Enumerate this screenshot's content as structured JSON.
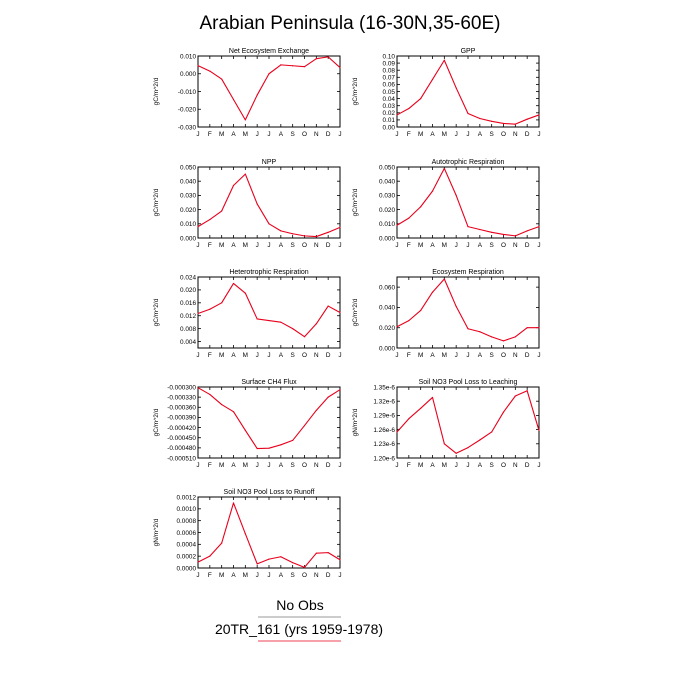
{
  "title": "Arabian Peninsula (16-30N,35-60E)",
  "colors": {
    "series": "#e8001c",
    "axis": "#000000"
  },
  "legend": [
    {
      "label": "No Obs",
      "color": "#777777"
    },
    {
      "label": "20TR_161 (yrs 1959-1978)",
      "color": "#e8001c"
    }
  ],
  "months": [
    "J",
    "F",
    "M",
    "A",
    "M",
    "J",
    "J",
    "A",
    "S",
    "O",
    "N",
    "D",
    "J"
  ],
  "chart_data": [
    {
      "type": "line",
      "title": "Net Ecosystem Exchange",
      "ylabel": "gC/m^2/d",
      "ylim": [
        -0.03,
        0.01
      ],
      "yticks": [
        0.01,
        0.0,
        -0.01,
        -0.02,
        -0.03
      ],
      "ytick_labels": [
        "0.010",
        "0.000",
        "-0.010",
        "-0.020",
        "-0.030"
      ],
      "values": [
        0.0046,
        0.0015,
        -0.003,
        -0.0145,
        -0.026,
        -0.012,
        0.0,
        0.005,
        0.0045,
        0.004,
        0.0085,
        0.0095,
        0.0035
      ]
    },
    {
      "type": "line",
      "title": "GPP",
      "ylabel": "gC/m^2/d",
      "ylim": [
        0.0,
        0.1
      ],
      "yticks": [
        0.1,
        0.09,
        0.08,
        0.07,
        0.06,
        0.05,
        0.04,
        0.03,
        0.02,
        0.01,
        0.0
      ],
      "ytick_labels": [
        "0.10",
        "0.09",
        "0.08",
        "0.07",
        "0.06",
        "0.05",
        "0.04",
        "0.03",
        "0.02",
        "0.01",
        "0.00"
      ],
      "values": [
        0.017,
        0.026,
        0.04,
        0.067,
        0.094,
        0.055,
        0.019,
        0.012,
        0.008,
        0.005,
        0.004,
        0.011,
        0.017
      ]
    },
    {
      "type": "line",
      "title": "NPP",
      "ylabel": "gC/m^2/d",
      "ylim": [
        0.0,
        0.05
      ],
      "yticks": [
        0.05,
        0.04,
        0.03,
        0.02,
        0.01,
        0.0
      ],
      "ytick_labels": [
        "0.050",
        "0.040",
        "0.030",
        "0.020",
        "0.010",
        "0.000"
      ],
      "values": [
        0.008,
        0.013,
        0.019,
        0.037,
        0.045,
        0.024,
        0.01,
        0.005,
        0.003,
        0.0015,
        0.001,
        0.004,
        0.0075
      ]
    },
    {
      "type": "line",
      "title": "Autotrophic Respiration",
      "ylabel": "gC/m^2/d",
      "ylim": [
        0.0,
        0.05
      ],
      "yticks": [
        0.05,
        0.04,
        0.03,
        0.02,
        0.01,
        0.0
      ],
      "ytick_labels": [
        "0.050",
        "0.040",
        "0.030",
        "0.020",
        "0.010",
        "0.000"
      ],
      "values": [
        0.009,
        0.014,
        0.022,
        0.033,
        0.049,
        0.03,
        0.008,
        0.006,
        0.004,
        0.0025,
        0.0015,
        0.005,
        0.008
      ]
    },
    {
      "type": "line",
      "title": "Heterotrophic Respiration",
      "ylabel": "gC/m^2/d",
      "ylim": [
        0.002,
        0.024
      ],
      "yticks": [
        0.024,
        0.02,
        0.016,
        0.012,
        0.008,
        0.004
      ],
      "ytick_labels": [
        "0.024",
        "0.020",
        "0.016",
        "0.012",
        "0.008",
        "0.004"
      ],
      "values": [
        0.0127,
        0.014,
        0.016,
        0.022,
        0.019,
        0.011,
        0.0105,
        0.01,
        0.008,
        0.0055,
        0.0095,
        0.015,
        0.013
      ]
    },
    {
      "type": "line",
      "title": "Ecosystem Respiration",
      "ylabel": "gC/m^2/d",
      "ylim": [
        0.0,
        0.07
      ],
      "yticks": [
        0.06,
        0.04,
        0.02,
        0.0
      ],
      "ytick_labels": [
        "0.060",
        "0.040",
        "0.020",
        "0.000"
      ],
      "values": [
        0.021,
        0.027,
        0.037,
        0.055,
        0.068,
        0.041,
        0.019,
        0.016,
        0.011,
        0.007,
        0.011,
        0.02,
        0.02
      ]
    },
    {
      "type": "line",
      "title": "Surface CH4 Flux",
      "ylabel": "gC/m^2/d",
      "ylim": [
        -0.00051,
        -0.0003
      ],
      "yticks": [
        -0.0003,
        -0.00033,
        -0.00036,
        -0.00039,
        -0.00042,
        -0.00045,
        -0.00048,
        -0.00051
      ],
      "ytick_labels": [
        "-0.000300",
        "-0.000330",
        "-0.000360",
        "-0.000390",
        "-0.000420",
        "-0.000450",
        "-0.000480",
        "-0.000510"
      ],
      "values": [
        -0.000302,
        -0.000322,
        -0.000352,
        -0.000373,
        -0.000428,
        -0.000482,
        -0.000481,
        -0.000471,
        -0.000458,
        -0.000414,
        -0.000369,
        -0.00033,
        -0.000308
      ]
    },
    {
      "type": "line",
      "title": "Soil NO3 Pool Loss to Leaching",
      "ylabel": "gN/m^2/d",
      "ylim": [
        1.2e-06,
        1.35e-06
      ],
      "yticks": [
        1.35e-06,
        1.32e-06,
        1.29e-06,
        1.26e-06,
        1.23e-06,
        1.2e-06
      ],
      "ytick_labels": [
        "1.35e-6",
        "1.32e-6",
        "1.29e-6",
        "1.26e-6",
        "1.23e-6",
        "1.20e-6"
      ],
      "values": [
        1.255e-06,
        1.283e-06,
        1.305e-06,
        1.328e-06,
        1.23e-06,
        1.21e-06,
        1.222e-06,
        1.238e-06,
        1.255e-06,
        1.297e-06,
        1.331e-06,
        1.342e-06,
        1.258e-06
      ]
    },
    {
      "type": "line",
      "title": "Soil NO3 Pool Loss to Runoff",
      "ylabel": "gN/m^2/d",
      "ylim": [
        0.0,
        0.0012
      ],
      "yticks": [
        0.0012,
        0.001,
        0.0008,
        0.0006,
        0.0004,
        0.0002,
        0.0
      ],
      "ytick_labels": [
        "0.0012",
        "0.0010",
        "0.0008",
        "0.0006",
        "0.0004",
        "0.0002",
        "0.0000"
      ],
      "values": [
        0.0001,
        0.0002,
        0.00042,
        0.0011,
        0.00058,
        7e-05,
        0.00015,
        0.00019,
        9e-05,
        1e-05,
        0.00025,
        0.00026,
        0.00014
      ]
    }
  ]
}
